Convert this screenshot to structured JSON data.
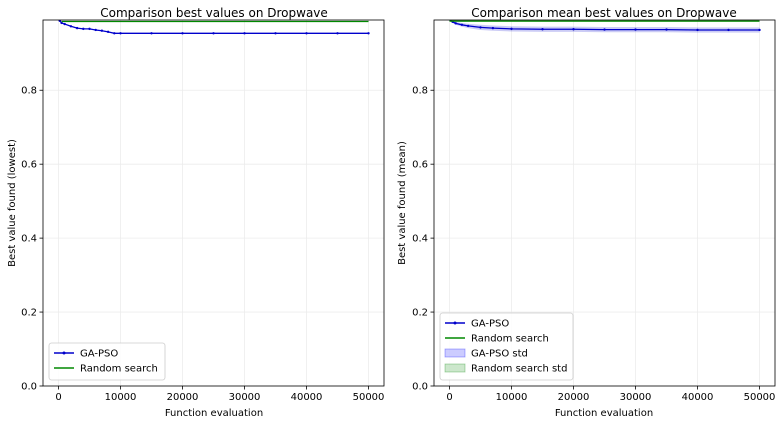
{
  "chart_data": [
    {
      "type": "line",
      "title": "Comparison best values on Dropwave",
      "xlabel": "Function evaluation",
      "ylabel": "Best value found (lowest)",
      "xlim": [
        -2500,
        52500
      ],
      "ylim": [
        0,
        0.99
      ],
      "xticks": [
        0,
        10000,
        20000,
        30000,
        40000,
        50000
      ],
      "yticks": [
        0.0,
        0.2,
        0.4,
        0.6,
        0.8
      ],
      "grid": true,
      "legend_position": "lower left",
      "series": [
        {
          "name": "GA-PSO",
          "color": "#0000cc",
          "marker": true,
          "x": [
            0,
            200,
            500,
            1000,
            2000,
            3000,
            4000,
            5000,
            6000,
            7000,
            8000,
            9000,
            10000,
            15000,
            20000,
            25000,
            30000,
            35000,
            40000,
            45000,
            50000
          ],
          "y": [
            0.995,
            0.988,
            0.982,
            0.979,
            0.973,
            0.968,
            0.966,
            0.966,
            0.963,
            0.961,
            0.958,
            0.954,
            0.954,
            0.954,
            0.954,
            0.954,
            0.954,
            0.954,
            0.954,
            0.954,
            0.954
          ]
        },
        {
          "name": "Random search",
          "color": "#008800",
          "marker": false,
          "x": [
            500,
            50000
          ],
          "y": [
            0.986,
            0.986
          ]
        }
      ]
    },
    {
      "type": "line",
      "title": "Comparison mean best values on Dropwave",
      "xlabel": "Function evaluation",
      "ylabel": "Best value found (mean)",
      "xlim": [
        -2500,
        52500
      ],
      "ylim": [
        0,
        0.99
      ],
      "xticks": [
        0,
        10000,
        20000,
        30000,
        40000,
        50000
      ],
      "yticks": [
        0.0,
        0.2,
        0.4,
        0.6,
        0.8
      ],
      "grid": true,
      "legend_position": "lower left",
      "series": [
        {
          "name": "GA-PSO",
          "color": "#0000cc",
          "marker": true,
          "x": [
            0,
            500,
            1000,
            2000,
            3000,
            5000,
            7000,
            10000,
            15000,
            20000,
            25000,
            30000,
            35000,
            40000,
            45000,
            50000
          ],
          "y": [
            0.992,
            0.985,
            0.981,
            0.977,
            0.974,
            0.97,
            0.968,
            0.966,
            0.965,
            0.965,
            0.964,
            0.964,
            0.964,
            0.963,
            0.963,
            0.963
          ],
          "std": [
            0.001,
            0.003,
            0.004,
            0.005,
            0.006,
            0.007,
            0.007,
            0.007,
            0.007,
            0.007,
            0.007,
            0.007,
            0.007,
            0.007,
            0.007,
            0.007
          ]
        },
        {
          "name": "Random search",
          "color": "#008800",
          "marker": false,
          "x": [
            0,
            50000
          ],
          "y": [
            0.987,
            0.987
          ],
          "std": [
            0.002,
            0.002
          ]
        }
      ],
      "band_legend": [
        {
          "name": "GA-PSO std",
          "color": "#0000ff"
        },
        {
          "name": "Random search std",
          "color": "#008800"
        }
      ]
    }
  ]
}
